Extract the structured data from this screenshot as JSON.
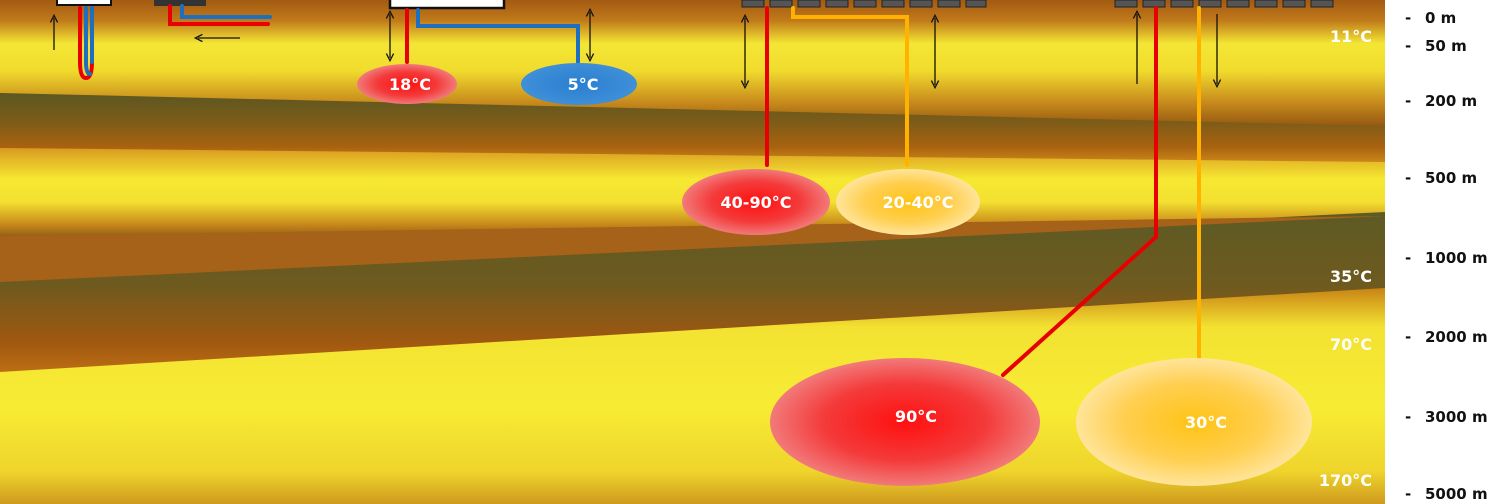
{
  "temperature_scale": {
    "surface": "11°C",
    "t1000": "35°C",
    "t2000": "70°C",
    "t5000": "170°C"
  },
  "depth_scale": [
    {
      "dash": "-",
      "label": "0 m"
    },
    {
      "dash": "-",
      "label": "50 m"
    },
    {
      "dash": "-",
      "label": "200 m"
    },
    {
      "dash": "-",
      "label": "500 m"
    },
    {
      "dash": "-",
      "label": "1000 m"
    },
    {
      "dash": "-",
      "label": "2000 m"
    },
    {
      "dash": "-",
      "label": "3000 m"
    },
    {
      "dash": "-",
      "label": "5000 m"
    }
  ],
  "reservoirs": {
    "shallow_warm": "18°C",
    "shallow_cold": "5°C",
    "medium_hot": "40-90°C",
    "medium_warm": "20-40°C",
    "deep_hot": "90°C",
    "deep_warm": "30°C"
  },
  "colors": {
    "hot_pipe": "#e80000",
    "cold_pipe": "#1f6fc0",
    "warm_pipe": "#ffb300",
    "layer_yellow": "#f6e932",
    "layer_brown": "#a5580e",
    "layer_olive": "#5f5a24"
  }
}
